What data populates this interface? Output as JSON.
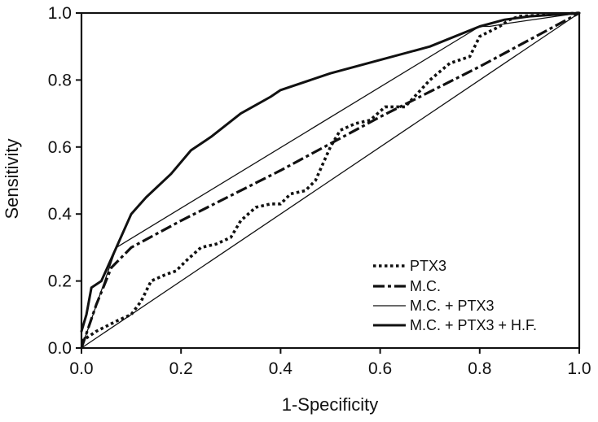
{
  "chart_data": {
    "type": "line",
    "title": "",
    "xlabel": "1-Specificity",
    "ylabel": "Sensitivity",
    "xlim": [
      0,
      1
    ],
    "ylim": [
      0,
      1
    ],
    "x_ticks": [
      "0.0",
      "0.2",
      "0.4",
      "0.6",
      "0.8",
      "1.0"
    ],
    "y_ticks": [
      "0.0",
      "0.2",
      "0.4",
      "0.6",
      "0.8",
      "1.0"
    ],
    "grid": false,
    "legend_position": "bottom-right",
    "diagonal_reference": true,
    "series": [
      {
        "name": "PTX3",
        "style": "dotted",
        "color": "#111111",
        "x": [
          0.0,
          0.03,
          0.07,
          0.1,
          0.12,
          0.14,
          0.17,
          0.19,
          0.21,
          0.24,
          0.27,
          0.3,
          0.32,
          0.35,
          0.38,
          0.4,
          0.42,
          0.45,
          0.47,
          0.5,
          0.52,
          0.55,
          0.58,
          0.61,
          0.65,
          0.7,
          0.74,
          0.78,
          0.8,
          0.84,
          0.86,
          0.88,
          1.0
        ],
        "y": [
          0.02,
          0.05,
          0.08,
          0.1,
          0.14,
          0.2,
          0.22,
          0.23,
          0.26,
          0.3,
          0.31,
          0.33,
          0.38,
          0.42,
          0.43,
          0.43,
          0.46,
          0.47,
          0.5,
          0.6,
          0.65,
          0.67,
          0.68,
          0.72,
          0.72,
          0.8,
          0.85,
          0.87,
          0.93,
          0.96,
          0.98,
          0.99,
          1.0
        ]
      },
      {
        "name": "M.C.",
        "style": "dash-dot",
        "color": "#111111",
        "x": [
          0.0,
          0.03,
          0.06,
          0.1,
          0.2,
          0.4,
          0.6,
          0.8,
          1.0
        ],
        "y": [
          0.0,
          0.13,
          0.24,
          0.3,
          0.38,
          0.53,
          0.69,
          0.84,
          1.0
        ]
      },
      {
        "name": "M.C. + PTX3",
        "style": "thin",
        "color": "#111111",
        "x": [
          0.0,
          0.07,
          0.8,
          0.82,
          0.86,
          1.0
        ],
        "y": [
          0.0,
          0.3,
          0.96,
          0.96,
          0.97,
          1.0
        ]
      },
      {
        "name": "M.C. + PTX3 + H.F.",
        "style": "thick",
        "color": "#111111",
        "x": [
          0.0,
          0.01,
          0.02,
          0.04,
          0.07,
          0.1,
          0.13,
          0.18,
          0.22,
          0.26,
          0.32,
          0.38,
          0.4,
          0.5,
          0.6,
          0.7,
          0.8,
          0.85,
          0.9,
          1.0
        ],
        "y": [
          0.05,
          0.1,
          0.18,
          0.2,
          0.3,
          0.4,
          0.45,
          0.52,
          0.59,
          0.63,
          0.7,
          0.75,
          0.77,
          0.82,
          0.86,
          0.9,
          0.96,
          0.98,
          0.99,
          1.0
        ]
      }
    ],
    "legend": [
      {
        "label": "PTX3",
        "style": "dotted"
      },
      {
        "label": "M.C.",
        "style": "dash-dot"
      },
      {
        "label": "M.C. + PTX3",
        "style": "thin"
      },
      {
        "label": "M.C. + PTX3 + H.F.",
        "style": "thick"
      }
    ]
  }
}
